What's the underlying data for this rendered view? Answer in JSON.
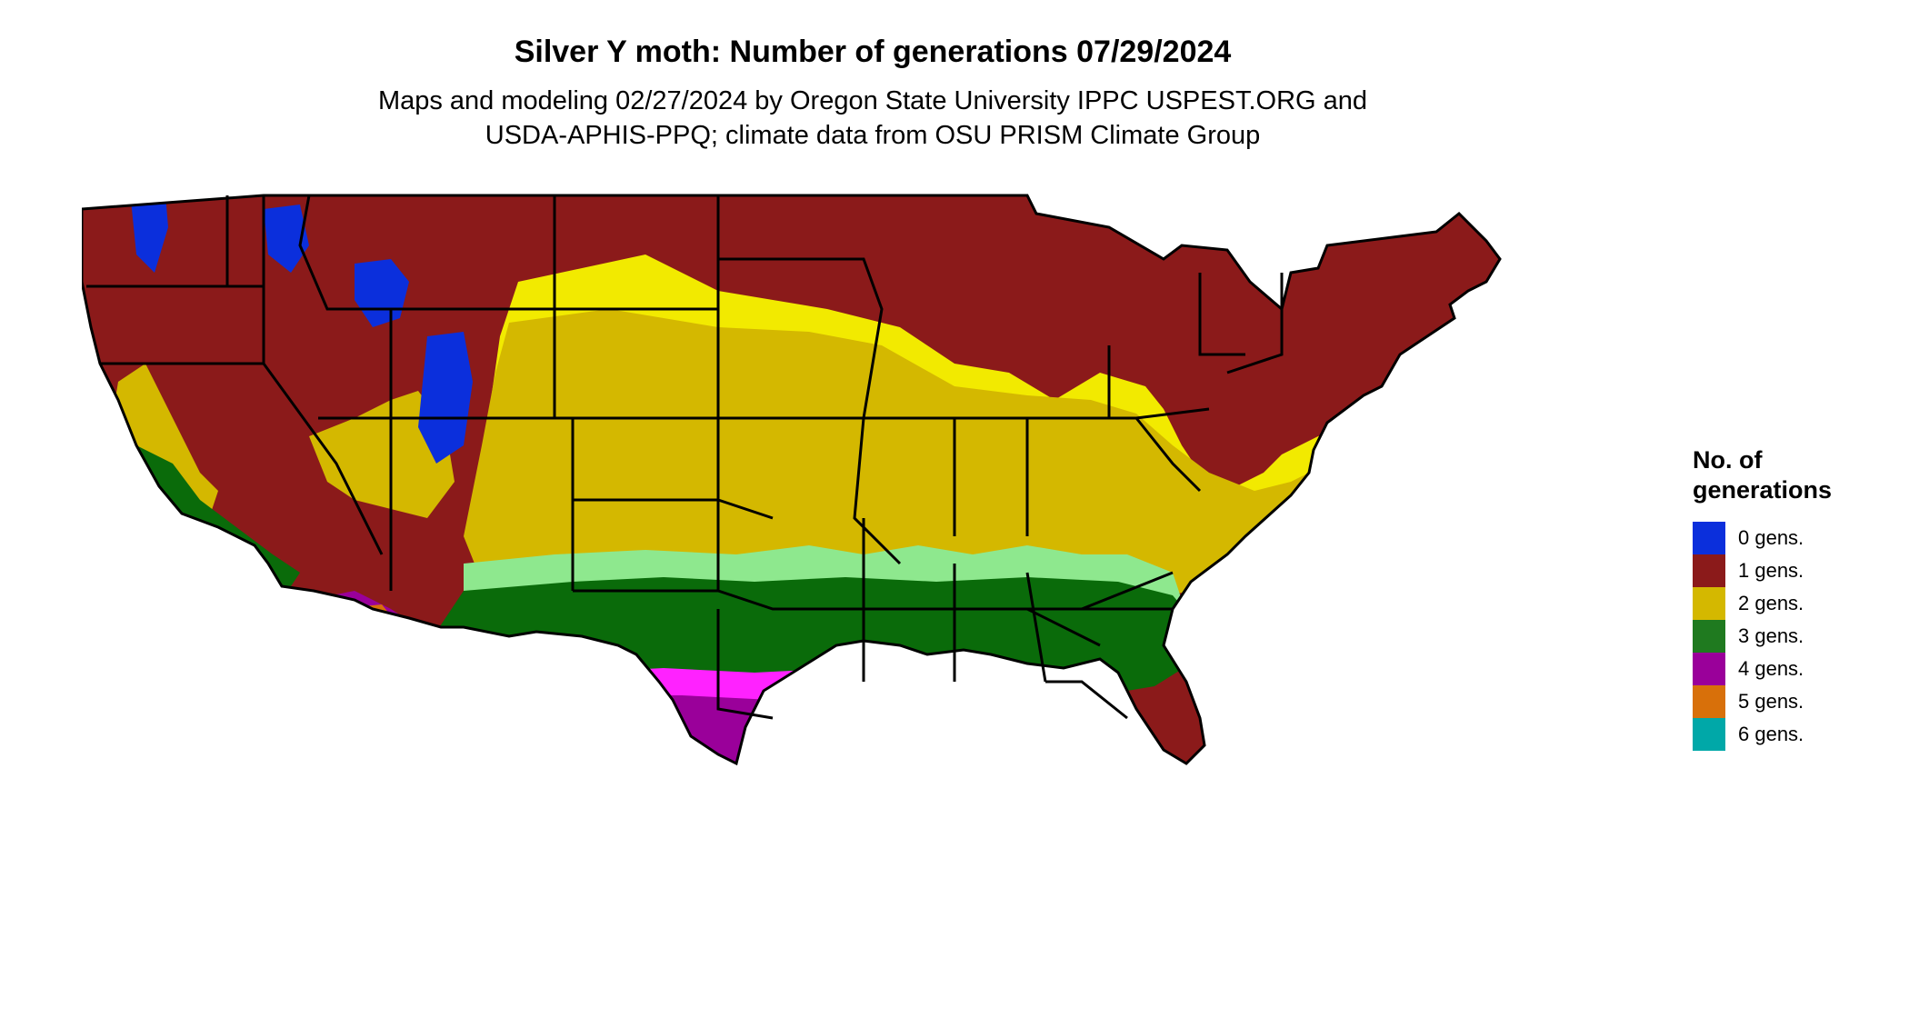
{
  "title": "Silver Y moth: Number of generations 07/29/2024",
  "subtitle": {
    "line1": "Maps and modeling 02/27/2024 by Oregon State University IPPC USPEST.ORG and",
    "line2": "USDA-APHIS-PPQ; climate data from OSU PRISM Climate Group"
  },
  "legend": {
    "title_line1": "No. of",
    "title_line2": "generations",
    "items": [
      {
        "label": "0 gens.",
        "color": "#0b2fdc"
      },
      {
        "label": "1 gens.",
        "color": "#8b1a1a"
      },
      {
        "label": "2 gens.",
        "color": "#d4b800"
      },
      {
        "label": "3 gens.",
        "color": "#1f7a1f"
      },
      {
        "label": "4 gens.",
        "color": "#9a009a"
      },
      {
        "label": "5 gens.",
        "color": "#d8700a"
      },
      {
        "label": "6 gens.",
        "color": "#00a8a8"
      }
    ]
  },
  "map": {
    "region": "Continental United States",
    "colors": {
      "gen0": "#0b2fdc",
      "gen1": "#8b1a1a",
      "gen1_edge": "#e8501a",
      "gen2": "#d4b800",
      "gen2_edge": "#f2ea00",
      "gen3": "#0a6b0a",
      "gen3_edge": "#8ee88e",
      "gen4": "#9a009a",
      "gen4_edge": "#ff22ff",
      "gen5": "#d8700a",
      "gen6": "#00b8b8",
      "border": "#000000"
    }
  }
}
